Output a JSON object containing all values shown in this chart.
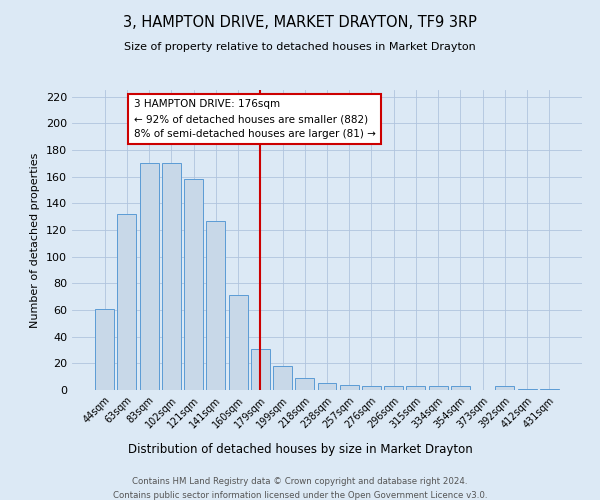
{
  "title": "3, HAMPTON DRIVE, MARKET DRAYTON, TF9 3RP",
  "subtitle": "Size of property relative to detached houses in Market Drayton",
  "xlabel": "Distribution of detached houses by size in Market Drayton",
  "ylabel": "Number of detached properties",
  "categories": [
    "44sqm",
    "63sqm",
    "83sqm",
    "102sqm",
    "121sqm",
    "141sqm",
    "160sqm",
    "179sqm",
    "199sqm",
    "218sqm",
    "238sqm",
    "257sqm",
    "276sqm",
    "296sqm",
    "315sqm",
    "334sqm",
    "354sqm",
    "373sqm",
    "392sqm",
    "412sqm",
    "431sqm"
  ],
  "values": [
    61,
    132,
    170,
    170,
    158,
    127,
    71,
    31,
    18,
    9,
    5,
    4,
    3,
    3,
    3,
    3,
    3,
    0,
    3,
    1,
    1
  ],
  "bar_color": "#c8d8e8",
  "bar_edge_color": "#5b9bd5",
  "background_color": "#dce9f5",
  "grid_color": "#b0c4de",
  "annotation_line1": "3 HAMPTON DRIVE: 176sqm",
  "annotation_line2": "← 92% of detached houses are smaller (882)",
  "annotation_line3": "8% of semi-detached houses are larger (81) →",
  "vline_x": 7.0,
  "vline_color": "#cc0000",
  "annotation_box_color": "#ffffff",
  "annotation_box_edge": "#cc0000",
  "ylim": [
    0,
    225
  ],
  "yticks": [
    0,
    20,
    40,
    60,
    80,
    100,
    120,
    140,
    160,
    180,
    200,
    220
  ],
  "footer1": "Contains HM Land Registry data © Crown copyright and database right 2024.",
  "footer2": "Contains public sector information licensed under the Open Government Licence v3.0."
}
